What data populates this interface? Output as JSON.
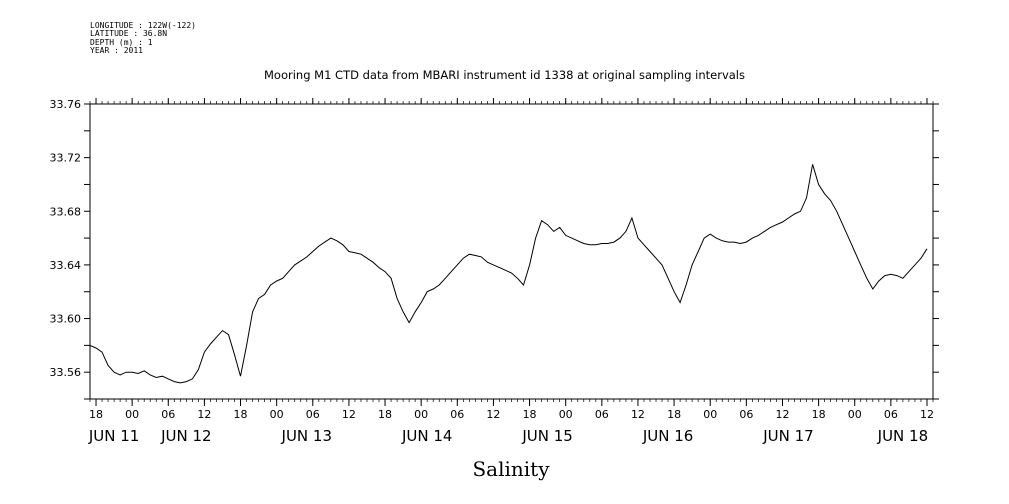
{
  "meta": {
    "longitude": "LONGITUDE : 122W(-122)",
    "latitude": "LATITUDE : 36.8N",
    "depth": "DEPTH (m) : 1",
    "year": "YEAR : 2011"
  },
  "chart_data": {
    "type": "line",
    "title": "Mooring M1 CTD data from MBARI instrument id 1338 at original sampling intervals",
    "xlabel": "Salinity",
    "ylabel": "",
    "x_range_hours": [
      -7,
      133
    ],
    "x_origin": "JUN 11 00:00, 2011",
    "ylim": [
      33.54,
      33.76
    ],
    "y_ticks": [
      "33.56",
      "33.60",
      "33.64",
      "33.68",
      "33.72",
      "33.76"
    ],
    "x_hour_ticks": [
      {
        "h": -6,
        "label": "18"
      },
      {
        "h": 0,
        "label": "00"
      },
      {
        "h": 6,
        "label": "06"
      },
      {
        "h": 12,
        "label": "12"
      },
      {
        "h": 18,
        "label": "18"
      },
      {
        "h": 24,
        "label": "00"
      },
      {
        "h": 30,
        "label": "06"
      },
      {
        "h": 36,
        "label": "12"
      },
      {
        "h": 42,
        "label": "18"
      },
      {
        "h": 48,
        "label": "00"
      },
      {
        "h": 54,
        "label": "06"
      },
      {
        "h": 60,
        "label": "12"
      },
      {
        "h": 66,
        "label": "18"
      },
      {
        "h": 72,
        "label": "00"
      },
      {
        "h": 78,
        "label": "06"
      },
      {
        "h": 84,
        "label": "12"
      },
      {
        "h": 90,
        "label": "18"
      },
      {
        "h": 96,
        "label": "00"
      },
      {
        "h": 102,
        "label": "06"
      },
      {
        "h": 108,
        "label": "12"
      },
      {
        "h": 114,
        "label": "18"
      },
      {
        "h": 120,
        "label": "00"
      },
      {
        "h": 126,
        "label": "06"
      },
      {
        "h": 132,
        "label": "12"
      }
    ],
    "x_day_labels": [
      {
        "h": -3,
        "label": "JUN 11"
      },
      {
        "h": 9,
        "label": "JUN 12"
      },
      {
        "h": 29,
        "label": "JUN 13"
      },
      {
        "h": 49,
        "label": "JUN 14"
      },
      {
        "h": 69,
        "label": "JUN 15"
      },
      {
        "h": 89,
        "label": "JUN 16"
      },
      {
        "h": 109,
        "label": "JUN 17"
      },
      {
        "h": 128,
        "label": "JUN 18"
      }
    ],
    "series": [
      {
        "points": [
          [
            -7.0,
            33.58
          ],
          [
            -6.0,
            33.578
          ],
          [
            -5.0,
            33.575
          ],
          [
            -4.0,
            33.565
          ],
          [
            -3.0,
            33.56
          ],
          [
            -2.0,
            33.558
          ],
          [
            -1.0,
            33.56
          ],
          [
            0.0,
            33.56
          ],
          [
            1.0,
            33.559
          ],
          [
            2.0,
            33.561
          ],
          [
            3.0,
            33.558
          ],
          [
            4.0,
            33.556
          ],
          [
            5.0,
            33.557
          ],
          [
            6.0,
            33.555
          ],
          [
            7.0,
            33.553
          ],
          [
            8.0,
            33.552
          ],
          [
            9.0,
            33.553
          ],
          [
            10.0,
            33.555
          ],
          [
            11.0,
            33.562
          ],
          [
            12.0,
            33.575
          ],
          [
            13.0,
            33.581
          ],
          [
            14.0,
            33.586
          ],
          [
            15.0,
            33.591
          ],
          [
            16.0,
            33.588
          ],
          [
            17.0,
            33.573
          ],
          [
            18.0,
            33.557
          ],
          [
            19.0,
            33.58
          ],
          [
            20.0,
            33.605
          ],
          [
            21.0,
            33.615
          ],
          [
            22.0,
            33.618
          ],
          [
            23.0,
            33.625
          ],
          [
            24.0,
            33.628
          ],
          [
            25.0,
            33.63
          ],
          [
            26.0,
            33.635
          ],
          [
            27.0,
            33.64
          ],
          [
            28.0,
            33.643
          ],
          [
            29.0,
            33.646
          ],
          [
            30.0,
            33.65
          ],
          [
            31.0,
            33.654
          ],
          [
            32.0,
            33.657
          ],
          [
            33.0,
            33.66
          ],
          [
            34.0,
            33.658
          ],
          [
            35.0,
            33.655
          ],
          [
            36.0,
            33.65
          ],
          [
            37.0,
            33.649
          ],
          [
            38.0,
            33.648
          ],
          [
            39.0,
            33.645
          ],
          [
            40.0,
            33.642
          ],
          [
            41.0,
            33.638
          ],
          [
            42.0,
            33.635
          ],
          [
            43.0,
            33.63
          ],
          [
            44.0,
            33.615
          ],
          [
            45.0,
            33.605
          ],
          [
            46.0,
            33.597
          ],
          [
            47.0,
            33.605
          ],
          [
            48.0,
            33.612
          ],
          [
            49.0,
            33.62
          ],
          [
            50.0,
            33.622
          ],
          [
            51.0,
            33.625
          ],
          [
            52.0,
            33.63
          ],
          [
            53.0,
            33.635
          ],
          [
            54.0,
            33.64
          ],
          [
            55.0,
            33.645
          ],
          [
            56.0,
            33.648
          ],
          [
            57.0,
            33.647
          ],
          [
            58.0,
            33.646
          ],
          [
            59.0,
            33.642
          ],
          [
            60.0,
            33.64
          ],
          [
            61.0,
            33.638
          ],
          [
            62.0,
            33.636
          ],
          [
            63.0,
            33.634
          ],
          [
            64.0,
            33.63
          ],
          [
            65.0,
            33.625
          ],
          [
            66.0,
            33.64
          ],
          [
            67.0,
            33.66
          ],
          [
            68.0,
            33.673
          ],
          [
            69.0,
            33.67
          ],
          [
            70.0,
            33.665
          ],
          [
            71.0,
            33.668
          ],
          [
            72.0,
            33.662
          ],
          [
            73.0,
            33.66
          ],
          [
            74.0,
            33.658
          ],
          [
            75.0,
            33.656
          ],
          [
            76.0,
            33.655
          ],
          [
            77.0,
            33.655
          ],
          [
            78.0,
            33.656
          ],
          [
            79.0,
            33.656
          ],
          [
            80.0,
            33.657
          ],
          [
            81.0,
            33.66
          ],
          [
            82.0,
            33.665
          ],
          [
            83.0,
            33.675
          ],
          [
            84.0,
            33.66
          ],
          [
            85.0,
            33.655
          ],
          [
            86.0,
            33.65
          ],
          [
            87.0,
            33.645
          ],
          [
            88.0,
            33.64
          ],
          [
            89.0,
            33.63
          ],
          [
            90.0,
            33.62
          ],
          [
            91.0,
            33.612
          ],
          [
            92.0,
            33.625
          ],
          [
            93.0,
            33.64
          ],
          [
            94.0,
            33.65
          ],
          [
            95.0,
            33.66
          ],
          [
            96.0,
            33.663
          ],
          [
            97.0,
            33.66
          ],
          [
            98.0,
            33.658
          ],
          [
            99.0,
            33.657
          ],
          [
            100.0,
            33.657
          ],
          [
            101.0,
            33.656
          ],
          [
            102.0,
            33.657
          ],
          [
            103.0,
            33.66
          ],
          [
            104.0,
            33.662
          ],
          [
            105.0,
            33.665
          ],
          [
            106.0,
            33.668
          ],
          [
            107.0,
            33.67
          ],
          [
            108.0,
            33.672
          ],
          [
            109.0,
            33.675
          ],
          [
            110.0,
            33.678
          ],
          [
            111.0,
            33.68
          ],
          [
            112.0,
            33.69
          ],
          [
            113.0,
            33.715
          ],
          [
            114.0,
            33.7
          ],
          [
            115.0,
            33.693
          ],
          [
            116.0,
            33.688
          ],
          [
            117.0,
            33.68
          ],
          [
            118.0,
            33.67
          ],
          [
            119.0,
            33.66
          ],
          [
            120.0,
            33.65
          ],
          [
            121.0,
            33.64
          ],
          [
            122.0,
            33.63
          ],
          [
            123.0,
            33.622
          ],
          [
            124.0,
            33.628
          ],
          [
            125.0,
            33.632
          ],
          [
            126.0,
            33.633
          ],
          [
            127.0,
            33.632
          ],
          [
            128.0,
            33.63
          ],
          [
            129.0,
            33.635
          ],
          [
            130.0,
            33.64
          ],
          [
            131.0,
            33.645
          ],
          [
            132.0,
            33.652
          ]
        ]
      }
    ]
  }
}
